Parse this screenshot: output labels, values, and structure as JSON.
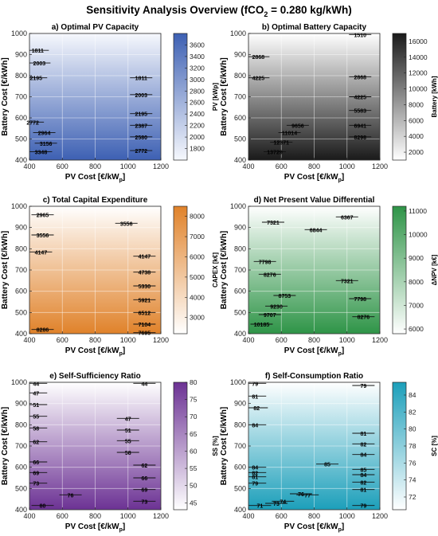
{
  "figure_title": "Sensitivity Analysis Overview (fCO",
  "figure_title_sub": "2",
  "figure_title_tail": " = 0.280 kg/kWh)",
  "chart_data": [
    {
      "type": "heatmap",
      "title": "a) Optimal PV Capacity",
      "xlabel": "PV Cost [€/kW",
      "xlabel_sub": "p",
      "xlabel_tail": "]",
      "ylabel": "Battery Cost [€/kWh]",
      "xlim": [
        400,
        1200
      ],
      "ylim": [
        400,
        1000
      ],
      "xticks": [
        400,
        600,
        800,
        1000,
        1200
      ],
      "yticks": [
        400,
        500,
        600,
        700,
        800,
        900,
        1000
      ],
      "grid": true,
      "colorbar": {
        "label": "PV [kWp]",
        "range": [
          1600,
          3800
        ],
        "ticks": [
          1800,
          2000,
          2200,
          2400,
          2600,
          2800,
          3000,
          3200,
          3400,
          3600
        ],
        "colors": [
          "#f6f8fd",
          "#3d60b3"
        ]
      },
      "contour_labels": [
        {
          "value": "1811",
          "x": 450,
          "y": 920
        },
        {
          "value": "2003",
          "x": 460,
          "y": 860
        },
        {
          "value": "2195",
          "x": 440,
          "y": 790
        },
        {
          "value": "2772",
          "x": 420,
          "y": 580
        },
        {
          "value": "2964",
          "x": 490,
          "y": 530
        },
        {
          "value": "3156",
          "x": 500,
          "y": 480
        },
        {
          "value": "3348",
          "x": 470,
          "y": 440
        },
        {
          "value": "1811",
          "x": 1080,
          "y": 790
        },
        {
          "value": "2003",
          "x": 1080,
          "y": 710
        },
        {
          "value": "2195",
          "x": 1080,
          "y": 620
        },
        {
          "value": "2387",
          "x": 1080,
          "y": 565
        },
        {
          "value": "2580",
          "x": 1080,
          "y": 510
        },
        {
          "value": "2772",
          "x": 1080,
          "y": 445
        }
      ]
    },
    {
      "type": "heatmap",
      "title": "b) Optimal Battery Capacity",
      "xlabel": "PV Cost [€/kW",
      "xlabel_sub": "p",
      "xlabel_tail": "]",
      "ylabel": "Battery Cost [€/kWh]",
      "xlim": [
        400,
        1200
      ],
      "ylim": [
        400,
        1000
      ],
      "xticks": [
        400,
        600,
        800,
        1000,
        1200
      ],
      "yticks": [
        400,
        500,
        600,
        700,
        800,
        900,
        1000
      ],
      "grid": true,
      "colorbar": {
        "label": "Battery [kWh]",
        "range": [
          1000,
          17000
        ],
        "ticks": [
          2000,
          4000,
          6000,
          8000,
          10000,
          12000,
          14000,
          16000
        ],
        "colors": [
          "#ffffff",
          "#1a1a1a"
        ]
      },
      "contour_labels": [
        {
          "value": "1510",
          "x": 1080,
          "y": 995
        },
        {
          "value": "2868",
          "x": 460,
          "y": 890
        },
        {
          "value": "4225",
          "x": 460,
          "y": 790
        },
        {
          "value": "2868",
          "x": 1080,
          "y": 795
        },
        {
          "value": "4225",
          "x": 1080,
          "y": 700
        },
        {
          "value": "5583",
          "x": 1080,
          "y": 635
        },
        {
          "value": "6941",
          "x": 1080,
          "y": 565
        },
        {
          "value": "8298",
          "x": 1080,
          "y": 510
        },
        {
          "value": "9656",
          "x": 700,
          "y": 565
        },
        {
          "value": "11014",
          "x": 650,
          "y": 530
        },
        {
          "value": "12371",
          "x": 600,
          "y": 485
        },
        {
          "value": "13729",
          "x": 560,
          "y": 440
        }
      ]
    },
    {
      "type": "heatmap",
      "title": "c) Total Capital Expenditure",
      "xlabel": "PV Cost [€/kW",
      "xlabel_sub": "p",
      "xlabel_tail": "]",
      "ylabel": "Battery Cost [€/kWh]",
      "xlim": [
        400,
        1200
      ],
      "ylim": [
        400,
        1000
      ],
      "xticks": [
        400,
        600,
        800,
        1000,
        1200
      ],
      "yticks": [
        400,
        500,
        600,
        700,
        800,
        900,
        1000
      ],
      "grid": true,
      "colorbar": {
        "label": "CAPEX [k€]",
        "range": [
          2200,
          8500
        ],
        "ticks": [
          3000,
          4000,
          5000,
          6000,
          7000,
          8000
        ],
        "colors": [
          "#ffffff",
          "#e0822a"
        ]
      },
      "contour_labels": [
        {
          "value": "2965",
          "x": 480,
          "y": 960
        },
        {
          "value": "3556",
          "x": 480,
          "y": 865
        },
        {
          "value": "4147",
          "x": 470,
          "y": 785
        },
        {
          "value": "3556",
          "x": 990,
          "y": 920
        },
        {
          "value": "4147",
          "x": 1100,
          "y": 765
        },
        {
          "value": "4738",
          "x": 1100,
          "y": 690
        },
        {
          "value": "5330",
          "x": 1100,
          "y": 625
        },
        {
          "value": "5921",
          "x": 1100,
          "y": 560
        },
        {
          "value": "6512",
          "x": 1100,
          "y": 500
        },
        {
          "value": "7104",
          "x": 1100,
          "y": 445
        },
        {
          "value": "7695",
          "x": 1100,
          "y": 405
        },
        {
          "value": "8286",
          "x": 480,
          "y": 420
        }
      ]
    },
    {
      "type": "heatmap",
      "title": "d) Net Present Value Differential",
      "xlabel": "PV Cost [€/kW",
      "xlabel_sub": "p",
      "xlabel_tail": "]",
      "ylabel": "Battery Cost [€/kWh]",
      "xlim": [
        400,
        1200
      ],
      "ylim": [
        400,
        1000
      ],
      "xticks": [
        400,
        600,
        800,
        1000,
        1200
      ],
      "yticks": [
        400,
        500,
        600,
        700,
        800,
        900,
        1000
      ],
      "grid": true,
      "colorbar": {
        "label": "ΔNPV [k€]",
        "range": [
          5800,
          11200
        ],
        "ticks": [
          6000,
          7000,
          8000,
          9000,
          10000,
          11000
        ],
        "colors": [
          "#ffffff",
          "#2e9447"
        ]
      },
      "contour_labels": [
        {
          "value": "6367",
          "x": 1000,
          "y": 950
        },
        {
          "value": "6844",
          "x": 810,
          "y": 890
        },
        {
          "value": "7321",
          "x": 550,
          "y": 925
        },
        {
          "value": "7321",
          "x": 1000,
          "y": 650
        },
        {
          "value": "7798",
          "x": 500,
          "y": 740
        },
        {
          "value": "7798",
          "x": 1080,
          "y": 565
        },
        {
          "value": "8276",
          "x": 530,
          "y": 680
        },
        {
          "value": "8276",
          "x": 1100,
          "y": 480
        },
        {
          "value": "8753",
          "x": 620,
          "y": 580
        },
        {
          "value": "9230",
          "x": 570,
          "y": 530
        },
        {
          "value": "9707",
          "x": 530,
          "y": 490
        },
        {
          "value": "10185",
          "x": 480,
          "y": 445
        }
      ]
    },
    {
      "type": "heatmap",
      "title": "e) Self-Sufficiency Ratio",
      "xlabel": "PV Cost [€/kW",
      "xlabel_sub": "p",
      "xlabel_tail": "]",
      "ylabel": "Battery Cost [€/kWh]",
      "xlim": [
        400,
        1200
      ],
      "ylim": [
        400,
        1000
      ],
      "xticks": [
        400,
        600,
        800,
        1000,
        1200
      ],
      "yticks": [
        400,
        500,
        600,
        700,
        800,
        900,
        1000
      ],
      "grid": true,
      "colorbar": {
        "label": "SS [%]",
        "range": [
          43,
          80
        ],
        "ticks": [
          45,
          50,
          55,
          60,
          65,
          70,
          75,
          80
        ],
        "colors": [
          "#ffffff",
          "#6c3294"
        ]
      },
      "contour_labels": [
        {
          "value": "44",
          "x": 440,
          "y": 995
        },
        {
          "value": "44",
          "x": 1100,
          "y": 995
        },
        {
          "value": "47",
          "x": 440,
          "y": 950
        },
        {
          "value": "51",
          "x": 440,
          "y": 895
        },
        {
          "value": "55",
          "x": 440,
          "y": 840
        },
        {
          "value": "58",
          "x": 440,
          "y": 785
        },
        {
          "value": "62",
          "x": 440,
          "y": 720
        },
        {
          "value": "66",
          "x": 440,
          "y": 625
        },
        {
          "value": "69",
          "x": 440,
          "y": 575
        },
        {
          "value": "73",
          "x": 440,
          "y": 525
        },
        {
          "value": "76",
          "x": 650,
          "y": 470
        },
        {
          "value": "80",
          "x": 480,
          "y": 420
        },
        {
          "value": "47",
          "x": 1000,
          "y": 830
        },
        {
          "value": "51",
          "x": 1000,
          "y": 775
        },
        {
          "value": "55",
          "x": 1000,
          "y": 725
        },
        {
          "value": "58",
          "x": 1000,
          "y": 670
        },
        {
          "value": "62",
          "x": 1100,
          "y": 610
        },
        {
          "value": "66",
          "x": 1100,
          "y": 550
        },
        {
          "value": "69",
          "x": 1100,
          "y": 495
        },
        {
          "value": "73",
          "x": 1100,
          "y": 440
        }
      ]
    },
    {
      "type": "heatmap",
      "title": "f) Self-Consumption Ratio",
      "xlabel": "PV Cost [€/kW",
      "xlabel_sub": "p",
      "xlabel_tail": "]",
      "ylabel": "Battery Cost [€/kWh]",
      "xlim": [
        400,
        1200
      ],
      "ylim": [
        400,
        1000
      ],
      "xticks": [
        400,
        600,
        800,
        1000,
        1200
      ],
      "yticks": [
        400,
        500,
        600,
        700,
        800,
        900,
        1000
      ],
      "grid": true,
      "colorbar": {
        "label": "SC [%]",
        "range": [
          70.5,
          85.5
        ],
        "ticks": [
          72,
          74,
          76,
          78,
          80,
          82,
          84
        ],
        "colors": [
          "#ffffff",
          "#1c9fba"
        ]
      },
      "contour_labels": [
        {
          "value": "79",
          "x": 440,
          "y": 995
        },
        {
          "value": "79",
          "x": 1100,
          "y": 985
        },
        {
          "value": "81",
          "x": 440,
          "y": 935
        },
        {
          "value": "82",
          "x": 450,
          "y": 880
        },
        {
          "value": "84",
          "x": 440,
          "y": 800
        },
        {
          "value": "81",
          "x": 1100,
          "y": 760
        },
        {
          "value": "82",
          "x": 1100,
          "y": 710
        },
        {
          "value": "84",
          "x": 1100,
          "y": 660
        },
        {
          "value": "85",
          "x": 880,
          "y": 615
        },
        {
          "value": "85",
          "x": 1100,
          "y": 590
        },
        {
          "value": "84",
          "x": 440,
          "y": 600
        },
        {
          "value": "82",
          "x": 440,
          "y": 575
        },
        {
          "value": "81",
          "x": 440,
          "y": 555
        },
        {
          "value": "79",
          "x": 440,
          "y": 525
        },
        {
          "value": "84",
          "x": 1100,
          "y": 565
        },
        {
          "value": "82",
          "x": 1100,
          "y": 530
        },
        {
          "value": "81",
          "x": 1100,
          "y": 495
        },
        {
          "value": "76",
          "x": 720,
          "y": 475
        },
        {
          "value": "77",
          "x": 760,
          "y": 470
        },
        {
          "value": "74",
          "x": 610,
          "y": 440
        },
        {
          "value": "73",
          "x": 570,
          "y": 430
        },
        {
          "value": "71",
          "x": 470,
          "y": 420
        },
        {
          "value": "79",
          "x": 1100,
          "y": 420
        }
      ]
    }
  ]
}
